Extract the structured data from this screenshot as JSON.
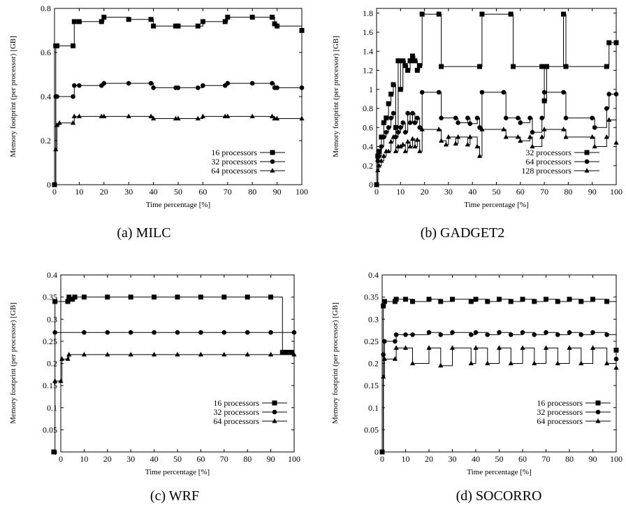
{
  "figure": {
    "captions": [
      "(a) MILC",
      "(b) GADGET2",
      "(c) WRF",
      "(d) SOCORRO"
    ]
  },
  "chart_data": [
    {
      "type": "line",
      "caption": "(a) MILC",
      "xlabel": "Time percentage [%]",
      "ylabel": "Memory footprint (per processor) [GB]",
      "xlim": [
        0,
        100
      ],
      "ylim": [
        0,
        0.8
      ],
      "xticks": [
        0,
        10,
        20,
        30,
        40,
        50,
        60,
        70,
        80,
        90,
        100
      ],
      "xtick_labels": [
        "0",
        "10",
        "20",
        "30",
        "40",
        "50",
        "60",
        "70",
        "80",
        "90",
        "100"
      ],
      "yticks": [
        0,
        0.2,
        0.4,
        0.6,
        0.8
      ],
      "ytick_labels": [
        "0",
        "0.2",
        "0.4",
        "0.6",
        "0.8"
      ],
      "grid": false,
      "legend_position": "bottom-right",
      "series": [
        {
          "name": "16 processors",
          "marker": "square",
          "x": [
            0,
            0.5,
            1,
            7.5,
            8,
            10,
            19,
            20,
            30,
            39,
            40,
            49,
            50,
            58,
            60,
            69,
            70,
            80,
            88,
            89,
            90,
            100
          ],
          "y": [
            0,
            0.63,
            0.63,
            0.63,
            0.74,
            0.74,
            0.74,
            0.76,
            0.75,
            0.75,
            0.72,
            0.72,
            0.72,
            0.72,
            0.74,
            0.74,
            0.76,
            0.76,
            0.76,
            0.73,
            0.72,
            0.7
          ]
        },
        {
          "name": "32 processors",
          "marker": "circle",
          "x": [
            0,
            0.5,
            1,
            7.5,
            8,
            10,
            19,
            20,
            30,
            39,
            40,
            49,
            50,
            58,
            60,
            69,
            70,
            80,
            88,
            89,
            90,
            100
          ],
          "y": [
            0,
            0.4,
            0.4,
            0.4,
            0.45,
            0.45,
            0.45,
            0.46,
            0.46,
            0.46,
            0.44,
            0.44,
            0.44,
            0.44,
            0.45,
            0.45,
            0.46,
            0.46,
            0.46,
            0.44,
            0.44,
            0.44
          ]
        },
        {
          "name": "64 processors",
          "marker": "triangle",
          "x": [
            0,
            0.5,
            1,
            2,
            7.5,
            8,
            10,
            19,
            20,
            30,
            39,
            40,
            49,
            50,
            58,
            60,
            69,
            70,
            80,
            88,
            89,
            90,
            100
          ],
          "y": [
            0,
            0.16,
            0.27,
            0.28,
            0.28,
            0.31,
            0.31,
            0.31,
            0.31,
            0.31,
            0.31,
            0.3,
            0.3,
            0.3,
            0.3,
            0.31,
            0.31,
            0.31,
            0.31,
            0.31,
            0.3,
            0.3,
            0.3
          ]
        }
      ]
    },
    {
      "type": "line",
      "caption": "(b) GADGET2",
      "xlabel": "Time percentage [%]",
      "ylabel": "Memory footprint (per processor) [GB]",
      "xlim": [
        0,
        100
      ],
      "ylim": [
        0,
        1.85
      ],
      "xticks": [
        0,
        10,
        20,
        30,
        40,
        50,
        60,
        70,
        80,
        90,
        100
      ],
      "xtick_labels": [
        "0",
        "10",
        "20",
        "30",
        "40",
        "50",
        "60",
        "70",
        "80",
        "90",
        "100"
      ],
      "yticks": [
        0,
        0.2,
        0.4,
        0.6,
        0.8,
        1.0,
        1.2,
        1.4,
        1.6,
        1.8
      ],
      "ytick_labels": [
        "0",
        "0.2",
        "0.4",
        "0.6",
        "0.8",
        "1",
        "1.2",
        "1.4",
        "1.6",
        "1.8"
      ],
      "grid": false,
      "legend_position": "bottom-right",
      "series": [
        {
          "name": "32 processors",
          "marker": "square",
          "x": [
            0,
            0.5,
            1,
            2,
            3,
            4,
            5,
            6,
            7,
            8,
            9,
            10,
            11,
            12,
            13,
            14,
            15,
            16,
            17,
            18,
            19,
            26,
            27,
            43,
            44,
            56,
            57,
            69,
            70,
            71,
            78,
            79,
            96,
            97,
            100
          ],
          "y": [
            0,
            0.3,
            0.35,
            0.5,
            0.65,
            0.7,
            0.85,
            0.95,
            1.05,
            0.6,
            1.3,
            1.0,
            1.3,
            1.25,
            1.2,
            1.3,
            1.35,
            1.3,
            1.2,
            1.25,
            1.79,
            1.79,
            1.24,
            1.24,
            1.79,
            1.79,
            1.24,
            1.24,
            0.88,
            1.24,
            1.79,
            1.24,
            1.24,
            1.49,
            1.49
          ]
        },
        {
          "name": "64 processors",
          "marker": "circle",
          "x": [
            0,
            0.5,
            1,
            2,
            3,
            4,
            5,
            6,
            7,
            8,
            9,
            10,
            11,
            12,
            13,
            14,
            15,
            16,
            17,
            18,
            19,
            26,
            27,
            33,
            34,
            38,
            39,
            42,
            43,
            44,
            53,
            54,
            59,
            60,
            64,
            65,
            69,
            70,
            78,
            79,
            90,
            91,
            96,
            97,
            100
          ],
          "y": [
            0,
            0.25,
            0.3,
            0.4,
            0.5,
            0.55,
            0.6,
            0.7,
            0.75,
            0.5,
            0.55,
            0.6,
            0.65,
            0.55,
            0.75,
            0.65,
            0.75,
            0.65,
            0.7,
            0.6,
            0.97,
            0.97,
            0.7,
            0.7,
            0.65,
            0.7,
            0.64,
            0.7,
            0.6,
            0.97,
            0.97,
            0.7,
            0.7,
            0.65,
            0.7,
            0.55,
            0.7,
            0.97,
            0.97,
            0.7,
            0.7,
            0.6,
            0.8,
            0.95,
            0.95
          ]
        },
        {
          "name": "128 processors",
          "marker": "triangle",
          "x": [
            0,
            0.5,
            1,
            2,
            3,
            4,
            5,
            6,
            7,
            8,
            9,
            10,
            11,
            12,
            13,
            14,
            15,
            16,
            17,
            18,
            19,
            26,
            27,
            29,
            30,
            33,
            34,
            38,
            39,
            42,
            43,
            44,
            53,
            54,
            59,
            60,
            64,
            65,
            69,
            70,
            78,
            79,
            90,
            91,
            96,
            97,
            100
          ],
          "y": [
            0,
            0.15,
            0.2,
            0.25,
            0.3,
            0.35,
            0.35,
            0.45,
            0.5,
            0.35,
            0.4,
            0.4,
            0.42,
            0.35,
            0.45,
            0.4,
            0.48,
            0.4,
            0.47,
            0.35,
            0.58,
            0.58,
            0.46,
            0.42,
            0.5,
            0.43,
            0.5,
            0.42,
            0.5,
            0.4,
            0.3,
            0.58,
            0.58,
            0.5,
            0.5,
            0.46,
            0.5,
            0.4,
            0.5,
            0.58,
            0.58,
            0.5,
            0.5,
            0.4,
            0.5,
            0.68,
            0.44
          ]
        }
      ]
    },
    {
      "type": "line",
      "caption": "(c) WRF",
      "xlabel": "Time percentage [%]",
      "ylabel": "Memory footprint (per processor) [GB]",
      "xlim": [
        0,
        100
      ],
      "ylim": [
        0,
        0.4
      ],
      "xticks": [
        0,
        10,
        20,
        30,
        40,
        50,
        60,
        70,
        80,
        90,
        100
      ],
      "xtick_labels": [
        "0",
        "10",
        "20",
        "30",
        "40",
        "50",
        "60",
        "70",
        "80",
        "90",
        "100"
      ],
      "yticks": [
        0,
        0.05,
        0.1,
        0.15,
        0.2,
        0.25,
        0.3,
        0.35,
        0.4
      ],
      "ytick_labels": [
        "0",
        "0.05",
        "0.1",
        "0.15",
        "0.2",
        "0.25",
        "0.3",
        "0.35",
        "0.4"
      ],
      "grid": false,
      "legend_position": "bottom-right",
      "series": [
        {
          "name": "16 processors",
          "marker": "square",
          "x": [
            -3,
            -2.5,
            3,
            3.5,
            5,
            6,
            10,
            20,
            30,
            40,
            50,
            60,
            70,
            80,
            90,
            95,
            96,
            97,
            98,
            99
          ],
          "y": [
            0,
            0.34,
            0.34,
            0.35,
            0.345,
            0.35,
            0.35,
            0.35,
            0.35,
            0.35,
            0.35,
            0.35,
            0.35,
            0.35,
            0.35,
            0.225,
            0.225,
            0.225,
            0.225,
            0.225
          ]
        },
        {
          "name": "32 processors",
          "marker": "circle",
          "x": [
            -2.5,
            10,
            20,
            30,
            40,
            50,
            60,
            70,
            80,
            90,
            100
          ],
          "y": [
            0.27,
            0.27,
            0.27,
            0.27,
            0.27,
            0.27,
            0.27,
            0.27,
            0.27,
            0.27,
            0.27
          ]
        },
        {
          "name": "64 processors",
          "marker": "triangle",
          "x": [
            -2.5,
            0,
            0.5,
            3,
            3.5,
            10,
            20,
            30,
            40,
            50,
            60,
            70,
            80,
            90,
            100
          ],
          "y": [
            0.16,
            0.16,
            0.21,
            0.21,
            0.22,
            0.22,
            0.22,
            0.22,
            0.22,
            0.22,
            0.22,
            0.22,
            0.22,
            0.22,
            0.22
          ]
        }
      ]
    },
    {
      "type": "line",
      "caption": "(d) SOCORRO",
      "xlabel": "Time percentage [%]",
      "ylabel": "Memory footprint (per processor) [GB]",
      "xlim": [
        0,
        100
      ],
      "ylim": [
        0,
        0.4
      ],
      "xticks": [
        0,
        10,
        20,
        30,
        40,
        50,
        60,
        70,
        80,
        90,
        100
      ],
      "xtick_labels": [
        "0",
        "10",
        "20",
        "30",
        "40",
        "50",
        "60",
        "70",
        "80",
        "90",
        "100"
      ],
      "yticks": [
        0,
        0.05,
        0.1,
        0.15,
        0.2,
        0.25,
        0.3,
        0.35,
        0.4
      ],
      "ytick_labels": [
        "0",
        "0.05",
        "0.1",
        "0.15",
        "0.2",
        "0.25",
        "0.3",
        "0.35",
        "0.4"
      ],
      "grid": false,
      "legend_position": "bottom-right",
      "series": [
        {
          "name": "16 processors",
          "marker": "square",
          "x": [
            0,
            0.5,
            1,
            5.5,
            6,
            10,
            13,
            20,
            25,
            30,
            38,
            40,
            45,
            50,
            55,
            60,
            65,
            70,
            75,
            80,
            85,
            90,
            96,
            100
          ],
          "y": [
            0,
            0.33,
            0.34,
            0.34,
            0.345,
            0.345,
            0.34,
            0.345,
            0.34,
            0.345,
            0.34,
            0.345,
            0.34,
            0.345,
            0.34,
            0.345,
            0.34,
            0.345,
            0.34,
            0.345,
            0.34,
            0.345,
            0.34,
            0.23
          ]
        },
        {
          "name": "32 processors",
          "marker": "circle",
          "x": [
            0,
            0.5,
            1,
            5.5,
            6,
            10,
            13,
            20,
            25,
            30,
            38,
            40,
            45,
            50,
            55,
            60,
            65,
            70,
            75,
            80,
            85,
            90,
            96,
            100
          ],
          "y": [
            0,
            0.22,
            0.25,
            0.25,
            0.265,
            0.265,
            0.265,
            0.27,
            0.265,
            0.27,
            0.265,
            0.27,
            0.265,
            0.27,
            0.265,
            0.27,
            0.265,
            0.27,
            0.265,
            0.27,
            0.265,
            0.27,
            0.265,
            0.21
          ]
        },
        {
          "name": "64 processors",
          "marker": "triangle",
          "x": [
            0,
            0.5,
            1,
            5.5,
            6,
            10,
            13,
            20,
            25,
            30,
            38,
            40,
            45,
            50,
            55,
            60,
            65,
            70,
            75,
            80,
            85,
            90,
            96,
            100
          ],
          "y": [
            0,
            0.17,
            0.21,
            0.21,
            0.235,
            0.235,
            0.2,
            0.235,
            0.195,
            0.235,
            0.2,
            0.235,
            0.2,
            0.235,
            0.2,
            0.235,
            0.2,
            0.235,
            0.2,
            0.235,
            0.2,
            0.235,
            0.2,
            0.19
          ]
        }
      ]
    }
  ]
}
